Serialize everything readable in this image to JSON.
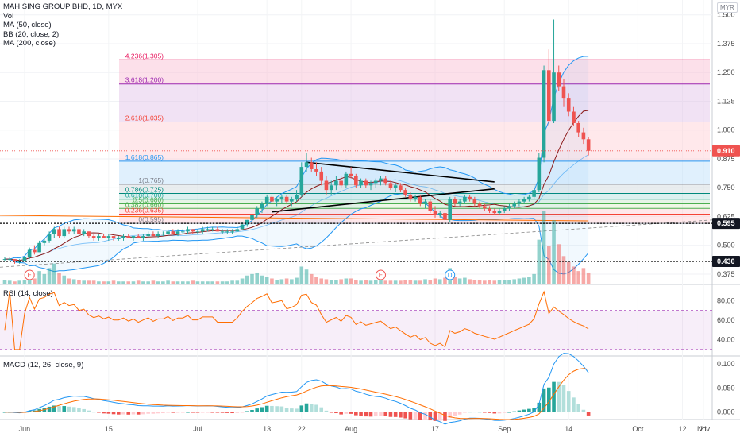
{
  "legend": {
    "title": "MAH SING GROUP BHD, 1D, MYX",
    "vol": "Vol",
    "ma50": "MA (50, close)",
    "bb": "BB (20, close, 2)",
    "ma200": "MA (200, close)",
    "currency": "MYR"
  },
  "rsi_label": "RSI (14, close)",
  "macd_label": "MACD (12, 26, close, 9)",
  "colors": {
    "up": "#26a69a",
    "down": "#ef5350",
    "rsi": "#ff6d00",
    "macd": "#2196f3",
    "signal": "#ff6d00",
    "bb": "#2196f3",
    "ma50": "#8b1a1a"
  },
  "chart_data": {
    "type": "candlestick",
    "price_axis": {
      "ticks": [
        "1.500",
        "1.375",
        "1.250",
        "1.125",
        "1.000",
        "0.875",
        "0.750",
        "0.625",
        "0.500",
        "0.375"
      ],
      "ylim": [
        0.33,
        1.53
      ]
    },
    "time_axis": {
      "ticks": [
        "Jun",
        "15",
        "Jul",
        "13",
        "22",
        "Aug",
        "17",
        "Sep",
        "14",
        "Oct",
        "12",
        "21",
        "Nov"
      ]
    },
    "price_tags": [
      {
        "label": "0.910",
        "value": 0.91,
        "color": "#ef5350"
      },
      {
        "label": "0.595",
        "value": 0.595,
        "color": "#131722"
      },
      {
        "label": "0.430",
        "value": 0.43,
        "color": "#131722"
      }
    ],
    "fib_levels": [
      {
        "label": "4.236(1.305)",
        "value": 1.305,
        "color": "#e91e63"
      },
      {
        "label": "3.618(1.200)",
        "value": 1.2,
        "color": "#9c27b0"
      },
      {
        "label": "2.618(1.035)",
        "value": 1.035,
        "color": "#f44336"
      },
      {
        "label": "1.618(0.865)",
        "value": 0.865,
        "color": "#2196f3"
      },
      {
        "label": "1(0.765)",
        "value": 0.765,
        "color": "#787b86"
      },
      {
        "label": "0.786(0.725)",
        "value": 0.725,
        "color": "#00897b"
      },
      {
        "label": "0.618(0.700)",
        "value": 0.7,
        "color": "#26a69a"
      },
      {
        "label": "0.5(0.680)",
        "value": 0.68,
        "color": "#4caf50"
      },
      {
        "label": "0.382(0.660)",
        "value": 0.66,
        "color": "#4caf50"
      },
      {
        "label": "0.236(0.635)",
        "value": 0.635,
        "color": "#f44336"
      },
      {
        "label": "0(0.595)",
        "value": 0.595,
        "color": "#787b86"
      }
    ],
    "candles": [
      [
        0.44,
        0.45,
        0.43,
        0.44
      ],
      [
        0.44,
        0.45,
        0.43,
        0.44
      ],
      [
        0.44,
        0.44,
        0.42,
        0.43
      ],
      [
        0.43,
        0.44,
        0.42,
        0.43
      ],
      [
        0.43,
        0.45,
        0.43,
        0.45
      ],
      [
        0.45,
        0.49,
        0.44,
        0.48
      ],
      [
        0.48,
        0.5,
        0.46,
        0.47
      ],
      [
        0.47,
        0.52,
        0.47,
        0.51
      ],
      [
        0.51,
        0.53,
        0.5,
        0.52
      ],
      [
        0.52,
        0.56,
        0.51,
        0.55
      ],
      [
        0.55,
        0.58,
        0.53,
        0.57
      ],
      [
        0.57,
        0.58,
        0.53,
        0.54
      ],
      [
        0.54,
        0.58,
        0.53,
        0.57
      ],
      [
        0.57,
        0.58,
        0.55,
        0.56
      ],
      [
        0.56,
        0.58,
        0.55,
        0.57
      ],
      [
        0.57,
        0.58,
        0.54,
        0.55
      ],
      [
        0.55,
        0.57,
        0.54,
        0.56
      ],
      [
        0.56,
        0.56,
        0.53,
        0.54
      ],
      [
        0.54,
        0.55,
        0.52,
        0.53
      ],
      [
        0.53,
        0.55,
        0.52,
        0.54
      ],
      [
        0.54,
        0.55,
        0.53,
        0.53
      ],
      [
        0.53,
        0.55,
        0.52,
        0.54
      ],
      [
        0.54,
        0.54,
        0.52,
        0.53
      ],
      [
        0.53,
        0.54,
        0.52,
        0.53
      ],
      [
        0.53,
        0.55,
        0.52,
        0.54
      ],
      [
        0.54,
        0.55,
        0.53,
        0.53
      ],
      [
        0.53,
        0.54,
        0.52,
        0.54
      ],
      [
        0.54,
        0.55,
        0.53,
        0.53
      ],
      [
        0.53,
        0.55,
        0.52,
        0.54
      ],
      [
        0.54,
        0.56,
        0.53,
        0.55
      ],
      [
        0.55,
        0.56,
        0.54,
        0.54
      ],
      [
        0.54,
        0.56,
        0.53,
        0.55
      ],
      [
        0.55,
        0.56,
        0.54,
        0.55
      ],
      [
        0.55,
        0.57,
        0.54,
        0.56
      ],
      [
        0.56,
        0.57,
        0.55,
        0.55
      ],
      [
        0.55,
        0.57,
        0.54,
        0.56
      ],
      [
        0.56,
        0.57,
        0.55,
        0.56
      ],
      [
        0.56,
        0.58,
        0.55,
        0.57
      ],
      [
        0.57,
        0.57,
        0.55,
        0.56
      ],
      [
        0.56,
        0.57,
        0.55,
        0.56
      ],
      [
        0.56,
        0.58,
        0.55,
        0.57
      ],
      [
        0.57,
        0.58,
        0.56,
        0.57
      ],
      [
        0.57,
        0.58,
        0.56,
        0.57
      ],
      [
        0.57,
        0.58,
        0.56,
        0.56
      ],
      [
        0.56,
        0.57,
        0.55,
        0.56
      ],
      [
        0.56,
        0.57,
        0.55,
        0.56
      ],
      [
        0.56,
        0.57,
        0.55,
        0.56
      ],
      [
        0.56,
        0.58,
        0.56,
        0.57
      ],
      [
        0.57,
        0.6,
        0.57,
        0.59
      ],
      [
        0.59,
        0.61,
        0.58,
        0.61
      ],
      [
        0.61,
        0.64,
        0.6,
        0.63
      ],
      [
        0.63,
        0.67,
        0.62,
        0.66
      ],
      [
        0.66,
        0.69,
        0.64,
        0.68
      ],
      [
        0.68,
        0.72,
        0.67,
        0.71
      ],
      [
        0.71,
        0.72,
        0.68,
        0.69
      ],
      [
        0.69,
        0.71,
        0.67,
        0.7
      ],
      [
        0.7,
        0.72,
        0.68,
        0.71
      ],
      [
        0.71,
        0.72,
        0.68,
        0.69
      ],
      [
        0.69,
        0.71,
        0.67,
        0.7
      ],
      [
        0.7,
        0.74,
        0.69,
        0.72
      ],
      [
        0.72,
        0.86,
        0.71,
        0.84
      ],
      [
        0.84,
        0.9,
        0.82,
        0.86
      ],
      [
        0.86,
        0.88,
        0.82,
        0.83
      ],
      [
        0.83,
        0.86,
        0.8,
        0.82
      ],
      [
        0.82,
        0.84,
        0.76,
        0.78
      ],
      [
        0.78,
        0.8,
        0.72,
        0.74
      ],
      [
        0.74,
        0.78,
        0.72,
        0.76
      ],
      [
        0.76,
        0.8,
        0.74,
        0.78
      ],
      [
        0.78,
        0.8,
        0.75,
        0.76
      ],
      [
        0.76,
        0.82,
        0.75,
        0.81
      ],
      [
        0.81,
        0.84,
        0.79,
        0.8
      ],
      [
        0.8,
        0.81,
        0.75,
        0.76
      ],
      [
        0.76,
        0.79,
        0.75,
        0.78
      ],
      [
        0.78,
        0.79,
        0.75,
        0.76
      ],
      [
        0.76,
        0.78,
        0.74,
        0.77
      ],
      [
        0.77,
        0.79,
        0.75,
        0.78
      ],
      [
        0.78,
        0.8,
        0.76,
        0.79
      ],
      [
        0.79,
        0.8,
        0.76,
        0.77
      ],
      [
        0.77,
        0.78,
        0.74,
        0.75
      ],
      [
        0.75,
        0.77,
        0.73,
        0.76
      ],
      [
        0.76,
        0.77,
        0.73,
        0.74
      ],
      [
        0.74,
        0.75,
        0.71,
        0.72
      ],
      [
        0.72,
        0.73,
        0.69,
        0.7
      ],
      [
        0.7,
        0.72,
        0.69,
        0.71
      ],
      [
        0.71,
        0.72,
        0.67,
        0.68
      ],
      [
        0.68,
        0.7,
        0.66,
        0.69
      ],
      [
        0.69,
        0.7,
        0.64,
        0.65
      ],
      [
        0.65,
        0.67,
        0.62,
        0.63
      ],
      [
        0.63,
        0.65,
        0.62,
        0.64
      ],
      [
        0.64,
        0.65,
        0.6,
        0.61
      ],
      [
        0.61,
        0.71,
        0.6,
        0.7
      ],
      [
        0.7,
        0.71,
        0.67,
        0.68
      ],
      [
        0.68,
        0.7,
        0.67,
        0.69
      ],
      [
        0.69,
        0.72,
        0.68,
        0.71
      ],
      [
        0.71,
        0.72,
        0.69,
        0.7
      ],
      [
        0.7,
        0.71,
        0.67,
        0.68
      ],
      [
        0.68,
        0.69,
        0.66,
        0.67
      ],
      [
        0.67,
        0.68,
        0.65,
        0.66
      ],
      [
        0.66,
        0.67,
        0.64,
        0.65
      ],
      [
        0.65,
        0.66,
        0.63,
        0.64
      ],
      [
        0.64,
        0.66,
        0.63,
        0.65
      ],
      [
        0.65,
        0.67,
        0.64,
        0.66
      ],
      [
        0.66,
        0.68,
        0.65,
        0.67
      ],
      [
        0.67,
        0.69,
        0.66,
        0.68
      ],
      [
        0.68,
        0.7,
        0.67,
        0.69
      ],
      [
        0.69,
        0.71,
        0.68,
        0.7
      ],
      [
        0.7,
        0.72,
        0.69,
        0.71
      ],
      [
        0.71,
        0.76,
        0.7,
        0.74
      ],
      [
        0.74,
        0.9,
        0.73,
        0.88
      ],
      [
        0.88,
        1.28,
        0.86,
        1.26
      ],
      [
        1.26,
        1.35,
        1.02,
        1.04
      ],
      [
        1.04,
        1.48,
        1.03,
        1.25
      ],
      [
        1.25,
        1.28,
        1.17,
        1.19
      ],
      [
        1.19,
        1.22,
        1.1,
        1.14
      ],
      [
        1.14,
        1.16,
        1.06,
        1.08
      ],
      [
        1.08,
        1.1,
        1.02,
        1.03
      ],
      [
        1.03,
        1.04,
        0.97,
        0.99
      ],
      [
        0.99,
        1.01,
        0.94,
        0.96
      ],
      [
        0.96,
        0.97,
        0.89,
        0.91
      ]
    ],
    "volume": [
      6,
      5,
      4,
      5,
      6,
      12,
      8,
      18,
      14,
      22,
      28,
      16,
      12,
      8,
      7,
      6,
      5,
      5,
      5,
      4,
      4,
      4,
      5,
      4,
      4,
      4,
      4,
      5,
      4,
      4,
      5,
      4,
      4,
      5,
      4,
      4,
      4,
      4,
      5,
      4,
      4,
      4,
      4,
      4,
      4,
      4,
      5,
      5,
      8,
      12,
      14,
      16,
      12,
      10,
      8,
      6,
      7,
      8,
      7,
      9,
      24,
      20,
      14,
      10,
      8,
      7,
      6,
      6,
      7,
      8,
      8,
      6,
      5,
      6,
      5,
      6,
      6,
      5,
      5,
      5,
      5,
      6,
      6,
      5,
      5,
      7,
      6,
      8,
      7,
      9,
      22,
      10,
      8,
      9,
      7,
      6,
      6,
      5,
      6,
      5,
      6,
      6,
      6,
      7,
      8,
      9,
      10,
      14,
      60,
      98,
      52,
      86,
      54,
      38,
      30,
      24,
      18,
      22,
      16
    ],
    "volume_events": [
      {
        "label": "E",
        "index": 5
      },
      {
        "label": "E",
        "index": 76
      },
      {
        "label": "D",
        "index": 90
      }
    ],
    "rsi_axis": {
      "ticks": [
        "80.00",
        "60.00",
        "40.00"
      ],
      "ylim": [
        25,
        95
      ],
      "band": [
        30,
        70
      ]
    },
    "macd_axis": {
      "ticks": [
        "0.100",
        "0.050",
        "0.000"
      ],
      "ylim": [
        -0.012,
        0.11
      ]
    }
  }
}
